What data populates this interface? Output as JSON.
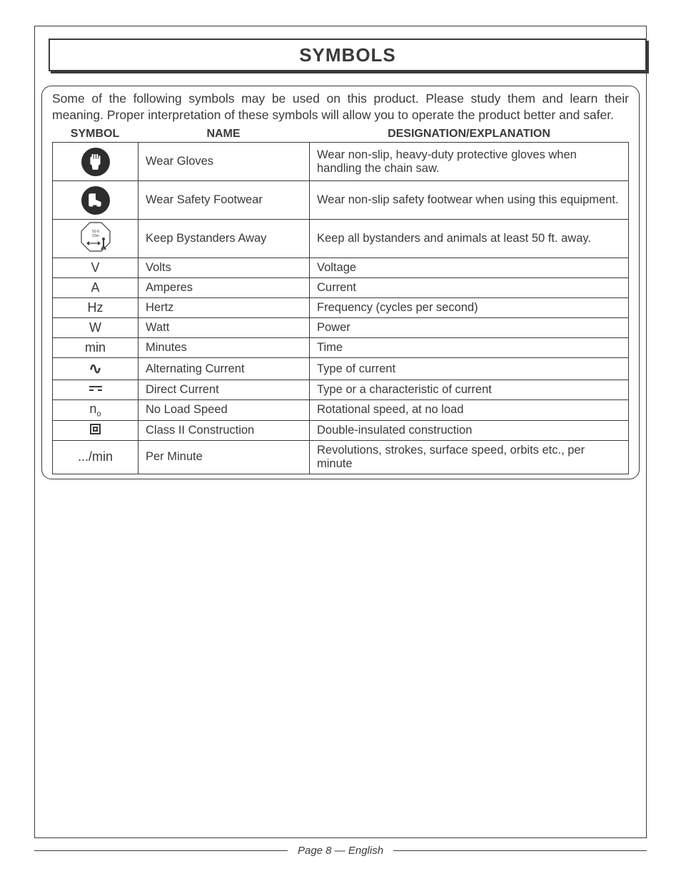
{
  "title": "SYMBOLS",
  "intro": "Some of the following symbols may be used on this product. Please study them and learn their meaning. Proper interpretation of these symbols will allow you to operate the product better and safer.",
  "headers": {
    "symbol": "SYMBOL",
    "name": "NAME",
    "explanation": "DESIGNATION/EXPLANATION"
  },
  "rows": [
    {
      "symbol_kind": "glove-icon",
      "symbol_text": "",
      "name": "Wear Gloves",
      "explanation": "Wear non-slip, heavy-duty protective gloves when handling the chain saw.",
      "big": true
    },
    {
      "symbol_kind": "boot-icon",
      "symbol_text": "",
      "name": "Wear Safety Footwear",
      "explanation": "Wear non-slip safety footwear when using this equipment.",
      "big": true
    },
    {
      "symbol_kind": "bystander-icon",
      "symbol_text": "",
      "name": "Keep Bystanders Away",
      "explanation": "Keep all bystanders and animals at least 50 ft. away.",
      "big": true
    },
    {
      "symbol_kind": "text",
      "symbol_text": "V",
      "name": "Volts",
      "explanation": "Voltage"
    },
    {
      "symbol_kind": "text",
      "symbol_text": "A",
      "name": "Amperes",
      "explanation": "Current"
    },
    {
      "symbol_kind": "text",
      "symbol_text": "Hz",
      "name": "Hertz",
      "explanation": "Frequency (cycles per second)"
    },
    {
      "symbol_kind": "text",
      "symbol_text": "W",
      "name": "Watt",
      "explanation": "Power"
    },
    {
      "symbol_kind": "text",
      "symbol_text": "min",
      "name": "Minutes",
      "explanation": "Time"
    },
    {
      "symbol_kind": "ac",
      "symbol_text": "∿",
      "name": "Alternating Current",
      "explanation": "Type of current"
    },
    {
      "symbol_kind": "dc",
      "symbol_text": "",
      "name": "Direct Current",
      "explanation": "Type or a characteristic of current"
    },
    {
      "symbol_kind": "n0",
      "symbol_text": "",
      "name": "No Load Speed",
      "explanation": "Rotational speed, at no load"
    },
    {
      "symbol_kind": "class2",
      "symbol_text": "",
      "name": "Class II Construction",
      "explanation": "Double-insulated construction"
    },
    {
      "symbol_kind": "text",
      "symbol_text": ".../min",
      "name": "Per Minute",
      "explanation": "Revolutions, strokes, surface speed, orbits etc., per minute"
    }
  ],
  "footer": "Page 8 — English",
  "icons": {
    "glove_svg_fill": "#ffffff",
    "boot_svg_fill": "#ffffff",
    "octagon_text1": "50 ft",
    "octagon_text2": "15m"
  },
  "colors": {
    "text": "#3a3a3a",
    "bg": "#ffffff"
  }
}
